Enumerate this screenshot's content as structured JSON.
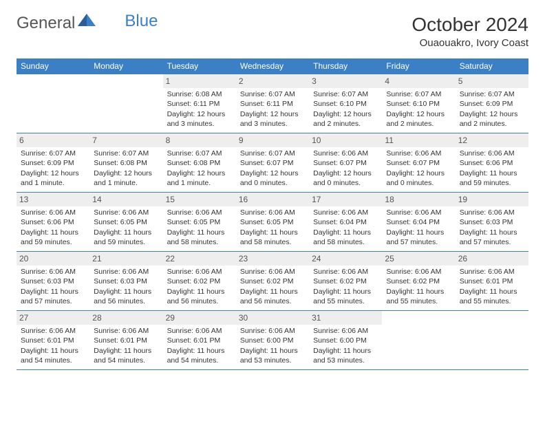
{
  "logo": {
    "part1": "General",
    "part2": "Blue"
  },
  "title": "October 2024",
  "location": "Ouaouakro, Ivory Coast",
  "colors": {
    "header_bg": "#3b7fc4",
    "header_fg": "#ffffff",
    "border": "#3b7fc4",
    "daynum_bg": "#eeeeee",
    "text": "#333333",
    "page_bg": "#ffffff"
  },
  "typography": {
    "month_title_fontsize": 28,
    "location_fontsize": 15,
    "weekday_fontsize": 12,
    "cell_fontsize": 10.5,
    "daynum_fontsize": 12,
    "logo_fontsize": 24
  },
  "weekdays": [
    "Sunday",
    "Monday",
    "Tuesday",
    "Wednesday",
    "Thursday",
    "Friday",
    "Saturday"
  ],
  "weeks": [
    [
      {
        "day": "",
        "sr": "",
        "ss": "",
        "dl": ""
      },
      {
        "day": "",
        "sr": "",
        "ss": "",
        "dl": ""
      },
      {
        "day": "1",
        "sr": "Sunrise: 6:08 AM",
        "ss": "Sunset: 6:11 PM",
        "dl": "Daylight: 12 hours and 3 minutes."
      },
      {
        "day": "2",
        "sr": "Sunrise: 6:07 AM",
        "ss": "Sunset: 6:11 PM",
        "dl": "Daylight: 12 hours and 3 minutes."
      },
      {
        "day": "3",
        "sr": "Sunrise: 6:07 AM",
        "ss": "Sunset: 6:10 PM",
        "dl": "Daylight: 12 hours and 2 minutes."
      },
      {
        "day": "4",
        "sr": "Sunrise: 6:07 AM",
        "ss": "Sunset: 6:10 PM",
        "dl": "Daylight: 12 hours and 2 minutes."
      },
      {
        "day": "5",
        "sr": "Sunrise: 6:07 AM",
        "ss": "Sunset: 6:09 PM",
        "dl": "Daylight: 12 hours and 2 minutes."
      }
    ],
    [
      {
        "day": "6",
        "sr": "Sunrise: 6:07 AM",
        "ss": "Sunset: 6:09 PM",
        "dl": "Daylight: 12 hours and 1 minute."
      },
      {
        "day": "7",
        "sr": "Sunrise: 6:07 AM",
        "ss": "Sunset: 6:08 PM",
        "dl": "Daylight: 12 hours and 1 minute."
      },
      {
        "day": "8",
        "sr": "Sunrise: 6:07 AM",
        "ss": "Sunset: 6:08 PM",
        "dl": "Daylight: 12 hours and 1 minute."
      },
      {
        "day": "9",
        "sr": "Sunrise: 6:07 AM",
        "ss": "Sunset: 6:07 PM",
        "dl": "Daylight: 12 hours and 0 minutes."
      },
      {
        "day": "10",
        "sr": "Sunrise: 6:06 AM",
        "ss": "Sunset: 6:07 PM",
        "dl": "Daylight: 12 hours and 0 minutes."
      },
      {
        "day": "11",
        "sr": "Sunrise: 6:06 AM",
        "ss": "Sunset: 6:07 PM",
        "dl": "Daylight: 12 hours and 0 minutes."
      },
      {
        "day": "12",
        "sr": "Sunrise: 6:06 AM",
        "ss": "Sunset: 6:06 PM",
        "dl": "Daylight: 11 hours and 59 minutes."
      }
    ],
    [
      {
        "day": "13",
        "sr": "Sunrise: 6:06 AM",
        "ss": "Sunset: 6:06 PM",
        "dl": "Daylight: 11 hours and 59 minutes."
      },
      {
        "day": "14",
        "sr": "Sunrise: 6:06 AM",
        "ss": "Sunset: 6:05 PM",
        "dl": "Daylight: 11 hours and 59 minutes."
      },
      {
        "day": "15",
        "sr": "Sunrise: 6:06 AM",
        "ss": "Sunset: 6:05 PM",
        "dl": "Daylight: 11 hours and 58 minutes."
      },
      {
        "day": "16",
        "sr": "Sunrise: 6:06 AM",
        "ss": "Sunset: 6:05 PM",
        "dl": "Daylight: 11 hours and 58 minutes."
      },
      {
        "day": "17",
        "sr": "Sunrise: 6:06 AM",
        "ss": "Sunset: 6:04 PM",
        "dl": "Daylight: 11 hours and 58 minutes."
      },
      {
        "day": "18",
        "sr": "Sunrise: 6:06 AM",
        "ss": "Sunset: 6:04 PM",
        "dl": "Daylight: 11 hours and 57 minutes."
      },
      {
        "day": "19",
        "sr": "Sunrise: 6:06 AM",
        "ss": "Sunset: 6:03 PM",
        "dl": "Daylight: 11 hours and 57 minutes."
      }
    ],
    [
      {
        "day": "20",
        "sr": "Sunrise: 6:06 AM",
        "ss": "Sunset: 6:03 PM",
        "dl": "Daylight: 11 hours and 57 minutes."
      },
      {
        "day": "21",
        "sr": "Sunrise: 6:06 AM",
        "ss": "Sunset: 6:03 PM",
        "dl": "Daylight: 11 hours and 56 minutes."
      },
      {
        "day": "22",
        "sr": "Sunrise: 6:06 AM",
        "ss": "Sunset: 6:02 PM",
        "dl": "Daylight: 11 hours and 56 minutes."
      },
      {
        "day": "23",
        "sr": "Sunrise: 6:06 AM",
        "ss": "Sunset: 6:02 PM",
        "dl": "Daylight: 11 hours and 56 minutes."
      },
      {
        "day": "24",
        "sr": "Sunrise: 6:06 AM",
        "ss": "Sunset: 6:02 PM",
        "dl": "Daylight: 11 hours and 55 minutes."
      },
      {
        "day": "25",
        "sr": "Sunrise: 6:06 AM",
        "ss": "Sunset: 6:02 PM",
        "dl": "Daylight: 11 hours and 55 minutes."
      },
      {
        "day": "26",
        "sr": "Sunrise: 6:06 AM",
        "ss": "Sunset: 6:01 PM",
        "dl": "Daylight: 11 hours and 55 minutes."
      }
    ],
    [
      {
        "day": "27",
        "sr": "Sunrise: 6:06 AM",
        "ss": "Sunset: 6:01 PM",
        "dl": "Daylight: 11 hours and 54 minutes."
      },
      {
        "day": "28",
        "sr": "Sunrise: 6:06 AM",
        "ss": "Sunset: 6:01 PM",
        "dl": "Daylight: 11 hours and 54 minutes."
      },
      {
        "day": "29",
        "sr": "Sunrise: 6:06 AM",
        "ss": "Sunset: 6:01 PM",
        "dl": "Daylight: 11 hours and 54 minutes."
      },
      {
        "day": "30",
        "sr": "Sunrise: 6:06 AM",
        "ss": "Sunset: 6:00 PM",
        "dl": "Daylight: 11 hours and 53 minutes."
      },
      {
        "day": "31",
        "sr": "Sunrise: 6:06 AM",
        "ss": "Sunset: 6:00 PM",
        "dl": "Daylight: 11 hours and 53 minutes."
      },
      {
        "day": "",
        "sr": "",
        "ss": "",
        "dl": ""
      },
      {
        "day": "",
        "sr": "",
        "ss": "",
        "dl": ""
      }
    ]
  ]
}
